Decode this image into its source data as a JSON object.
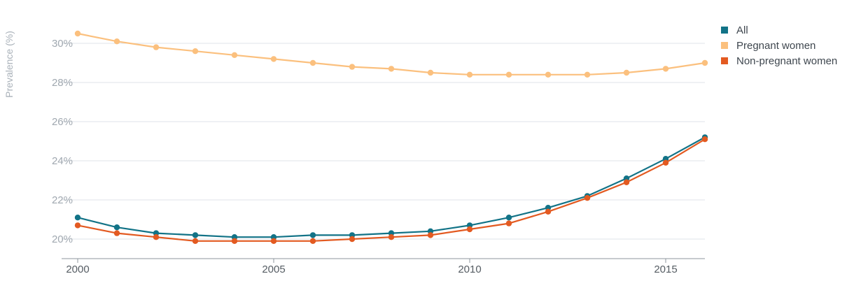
{
  "chart_data": {
    "type": "line",
    "ylabel": "Prevalence (%)",
    "xlabel": "",
    "ylim": [
      19,
      31
    ],
    "xlim": [
      2000,
      2016
    ],
    "yticks": [
      20,
      22,
      24,
      26,
      28,
      30
    ],
    "ytick_labels": [
      "20%",
      "22%",
      "24%",
      "26%",
      "28%",
      "30%"
    ],
    "xticks": [
      2000,
      2005,
      2010,
      2015
    ],
    "xtick_labels": [
      "2000",
      "2005",
      "2010",
      "2015"
    ],
    "grid": true,
    "legend_position": "top-right",
    "x": [
      2000,
      2001,
      2002,
      2003,
      2004,
      2005,
      2006,
      2007,
      2008,
      2009,
      2010,
      2011,
      2012,
      2013,
      2014,
      2015,
      2016
    ],
    "series": [
      {
        "name": "All",
        "color": "#127387",
        "values": [
          21.1,
          20.6,
          20.3,
          20.2,
          20.1,
          20.1,
          20.2,
          20.2,
          20.3,
          20.4,
          20.7,
          21.1,
          21.6,
          22.2,
          23.1,
          24.1,
          25.2
        ]
      },
      {
        "name": "Pregnant women",
        "color": "#fbc07e",
        "values": [
          30.5,
          30.1,
          29.8,
          29.6,
          29.4,
          29.2,
          29.0,
          28.8,
          28.7,
          28.5,
          28.4,
          28.4,
          28.4,
          28.4,
          28.5,
          28.7,
          29.0
        ]
      },
      {
        "name": "Non-pregnant women",
        "color": "#e35a21",
        "values": [
          20.7,
          20.3,
          20.1,
          19.9,
          19.9,
          19.9,
          19.9,
          20.0,
          20.1,
          20.2,
          20.5,
          20.8,
          21.4,
          22.1,
          22.9,
          23.9,
          25.1
        ]
      }
    ]
  }
}
